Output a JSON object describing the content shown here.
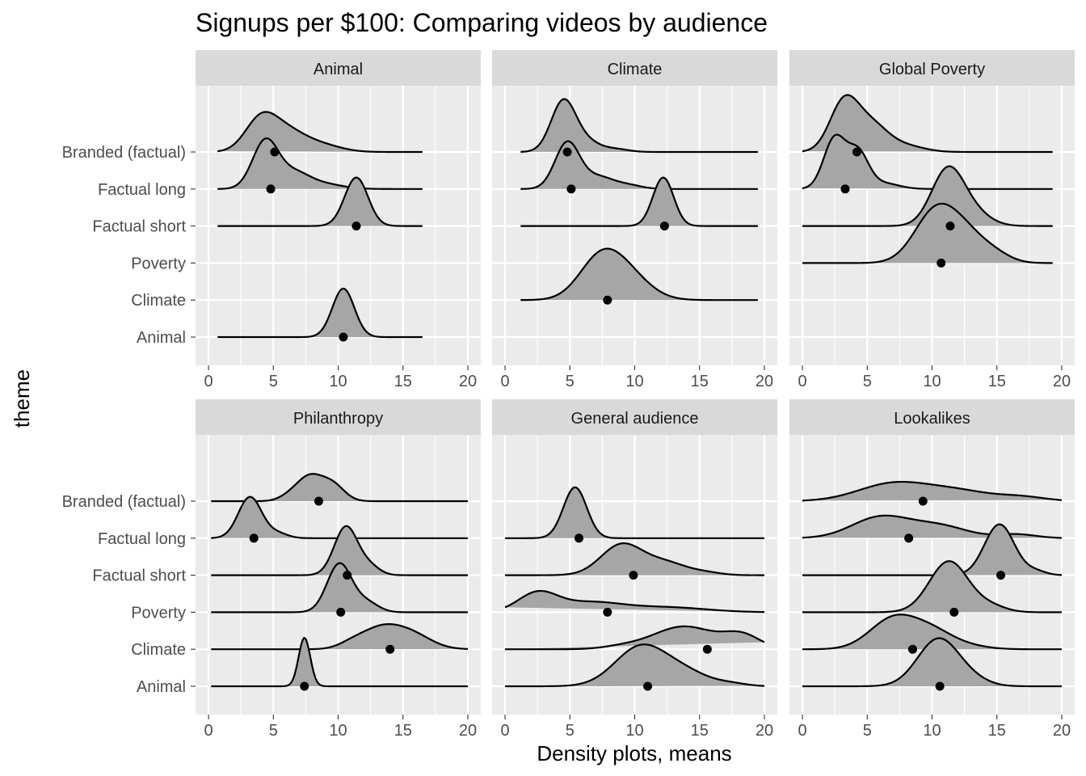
{
  "chart_data": {
    "type": "ridgeline",
    "title": "Signups per $100: Comparing videos by audience",
    "xlabel": "Density plots, means",
    "ylabel": "theme",
    "xlim": [
      -1,
      21
    ],
    "x_ticks": [
      0,
      5,
      10,
      15,
      20
    ],
    "categories": [
      "Animal",
      "Climate",
      "Poverty",
      "Factual short",
      "Factual long",
      "Branded (factual)"
    ],
    "colors": {
      "fill": "#a6a6a6",
      "line": "#000000",
      "panel": "#ebebeb",
      "strip": "#d9d9d9",
      "grid": "#ffffff"
    },
    "panels": [
      {
        "name": "Animal",
        "series": [
          {
            "theme": "Animal",
            "mean": 10.4,
            "min": 0.7,
            "max": 16.5,
            "peaks": [
              [
                10.4,
                0.85,
                1.0
              ]
            ]
          },
          {
            "theme": "Climate",
            "present": false
          },
          {
            "theme": "Poverty",
            "present": false
          },
          {
            "theme": "Factual short",
            "mean": 11.4,
            "min": 0.7,
            "max": 16.5,
            "peaks": [
              [
                11.4,
                0.9,
                1.0
              ]
            ]
          },
          {
            "theme": "Factual long",
            "mean": 4.8,
            "min": 0.7,
            "max": 16.5,
            "peaks": [
              [
                4.4,
                1.0,
                1.0
              ],
              [
                6.6,
                1.1,
                0.28
              ],
              [
                8.5,
                1.6,
                0.12
              ]
            ]
          },
          {
            "theme": "Branded (factual)",
            "mean": 5.1,
            "min": 0.7,
            "max": 16.5,
            "peaks": [
              [
                4.0,
                1.2,
                0.62
              ],
              [
                6.0,
                1.5,
                0.42
              ],
              [
                8.8,
                1.5,
                0.13
              ]
            ]
          }
        ]
      },
      {
        "name": "Climate",
        "series": [
          {
            "theme": "Animal",
            "present": false
          },
          {
            "theme": "Climate",
            "mean": 7.9,
            "min": 1.2,
            "max": 19.5,
            "peaks": [
              [
                7.2,
                1.6,
                0.7
              ],
              [
                9.2,
                1.8,
                0.55
              ]
            ]
          },
          {
            "theme": "Poverty",
            "present": false
          },
          {
            "theme": "Factual short",
            "mean": 12.3,
            "min": 1.2,
            "max": 19.5,
            "peaks": [
              [
                12.2,
                0.8,
                1.0
              ]
            ]
          },
          {
            "theme": "Factual long",
            "mean": 5.1,
            "min": 1.2,
            "max": 19.5,
            "peaks": [
              [
                4.8,
                0.95,
                0.95
              ],
              [
                7.2,
                1.2,
                0.25
              ],
              [
                9.6,
                1.0,
                0.07
              ]
            ]
          },
          {
            "theme": "Branded (factual)",
            "mean": 4.8,
            "min": 1.2,
            "max": 19.5,
            "peaks": [
              [
                4.5,
                0.95,
                1.05
              ],
              [
                6.3,
                1.0,
                0.2
              ],
              [
                8.5,
                1.0,
                0.06
              ]
            ]
          }
        ]
      },
      {
        "name": "Global Poverty",
        "series": [
          {
            "theme": "Animal",
            "present": false
          },
          {
            "theme": "Climate",
            "present": false
          },
          {
            "theme": "Poverty",
            "mean": 10.7,
            "min": 0.0,
            "max": 19.3,
            "peaks": [
              [
                10.2,
                1.6,
                1.0
              ],
              [
                12.6,
                1.6,
                0.55
              ],
              [
                15.0,
                1.2,
                0.12
              ]
            ]
          },
          {
            "theme": "Factual short",
            "mean": 11.4,
            "min": 0.0,
            "max": 19.3,
            "peaks": [
              [
                11.2,
                1.25,
                1.15
              ],
              [
                13.2,
                1.3,
                0.25
              ]
            ]
          },
          {
            "theme": "Factual long",
            "mean": 3.3,
            "min": 0.0,
            "max": 19.3,
            "peaks": [
              [
                2.5,
                0.85,
                1.05
              ],
              [
                4.3,
                0.8,
                0.72
              ],
              [
                6.2,
                1.2,
                0.12
              ]
            ]
          },
          {
            "theme": "Branded (factual)",
            "mean": 4.2,
            "min": 0.0,
            "max": 19.3,
            "peaks": [
              [
                3.2,
                1.1,
                1.0
              ],
              [
                5.3,
                1.3,
                0.55
              ],
              [
                8.0,
                1.4,
                0.12
              ]
            ]
          }
        ]
      },
      {
        "name": "Philanthropy",
        "series": [
          {
            "theme": "Animal",
            "mean": 7.4,
            "min": 0.2,
            "max": 20.0,
            "peaks": [
              [
                7.4,
                0.45,
                1.0
              ]
            ]
          },
          {
            "theme": "Climate",
            "mean": 14.0,
            "min": 0.2,
            "max": 20.0,
            "peaks": [
              [
                13.3,
                1.6,
                0.43
              ],
              [
                15.8,
                1.5,
                0.26
              ],
              [
                11.0,
                1.0,
                0.08
              ]
            ]
          },
          {
            "theme": "Poverty",
            "mean": 10.2,
            "min": 0.2,
            "max": 20.0,
            "peaks": [
              [
                10.1,
                0.95,
                1.0
              ],
              [
                12.2,
                0.9,
                0.2
              ]
            ]
          },
          {
            "theme": "Factual short",
            "mean": 10.7,
            "min": 0.2,
            "max": 20.0,
            "peaks": [
              [
                10.6,
                0.9,
                1.0
              ],
              [
                12.4,
                0.8,
                0.18
              ]
            ]
          },
          {
            "theme": "Factual long",
            "mean": 3.5,
            "min": 0.2,
            "max": 20.0,
            "peaks": [
              [
                3.2,
                0.9,
                0.85
              ],
              [
                5.3,
                0.8,
                0.1
              ]
            ]
          },
          {
            "theme": "Branded (factual)",
            "mean": 8.5,
            "min": 0.2,
            "max": 20.0,
            "peaks": [
              [
                7.8,
                1.0,
                0.5
              ],
              [
                9.6,
                0.9,
                0.32
              ],
              [
                6.2,
                0.8,
                0.08
              ]
            ]
          }
        ]
      },
      {
        "name": "General audience",
        "series": [
          {
            "theme": "Animal",
            "mean": 11.0,
            "min": 0.0,
            "max": 20.0,
            "peaks": [
              [
                10.5,
                2.0,
                0.82
              ],
              [
                14.0,
                1.8,
                0.25
              ],
              [
                17.5,
                1.2,
                0.05
              ]
            ]
          },
          {
            "theme": "Climate",
            "mean": 15.6,
            "min": 0.0,
            "max": 20.0,
            "peaks": [
              [
                13.8,
                2.4,
                0.47
              ],
              [
                18.3,
                1.4,
                0.27
              ],
              [
                9.0,
                1.5,
                0.05
              ]
            ]
          },
          {
            "theme": "Poverty",
            "mean": 7.9,
            "min": 0.0,
            "max": 20.0,
            "peaks": [
              [
                2.5,
                1.5,
                0.38
              ],
              [
                6.5,
                2.5,
                0.2
              ],
              [
                12.5,
                3.0,
                0.1
              ]
            ]
          },
          {
            "theme": "Factual short",
            "mean": 9.9,
            "min": 0.0,
            "max": 20.0,
            "peaks": [
              [
                9.0,
                1.6,
                0.63
              ],
              [
                12.4,
                1.6,
                0.25
              ],
              [
                15.5,
                1.2,
                0.05
              ]
            ]
          },
          {
            "theme": "Factual long",
            "mean": 5.7,
            "min": 0.0,
            "max": 20.0,
            "peaks": [
              [
                5.4,
                0.9,
                1.05
              ]
            ]
          },
          {
            "theme": "Branded (factual)",
            "present": false
          }
        ]
      },
      {
        "name": "Lookalikes",
        "series": [
          {
            "theme": "Animal",
            "mean": 10.6,
            "min": 0.0,
            "max": 20.0,
            "peaks": [
              [
                10.5,
                1.6,
                0.98
              ],
              [
                13.2,
                1.3,
                0.1
              ]
            ]
          },
          {
            "theme": "Climate",
            "mean": 8.5,
            "min": 0.0,
            "max": 20.0,
            "peaks": [
              [
                7.0,
                1.8,
                0.62
              ],
              [
                10.0,
                1.7,
                0.35
              ],
              [
                13.0,
                1.5,
                0.05
              ]
            ]
          },
          {
            "theme": "Poverty",
            "mean": 11.7,
            "min": 0.0,
            "max": 20.0,
            "peaks": [
              [
                11.3,
                1.5,
                1.05
              ],
              [
                14.5,
                1.2,
                0.12
              ]
            ]
          },
          {
            "theme": "Factual short",
            "mean": 15.3,
            "min": 0.0,
            "max": 20.0,
            "peaks": [
              [
                15.2,
                1.15,
                1.05
              ],
              [
                18.0,
                0.8,
                0.08
              ]
            ]
          },
          {
            "theme": "Factual long",
            "mean": 8.2,
            "min": 0.0,
            "max": 20.0,
            "peaks": [
              [
                6.0,
                2.2,
                0.43
              ],
              [
                10.5,
                2.2,
                0.25
              ],
              [
                16.5,
                1.5,
                0.08
              ]
            ]
          },
          {
            "theme": "Branded (factual)",
            "mean": 9.3,
            "min": 0.0,
            "max": 20.0,
            "peaks": [
              [
                7.0,
                2.7,
                0.36
              ],
              [
                12.0,
                2.6,
                0.2
              ],
              [
                17.0,
                1.8,
                0.08
              ]
            ]
          }
        ]
      }
    ]
  }
}
